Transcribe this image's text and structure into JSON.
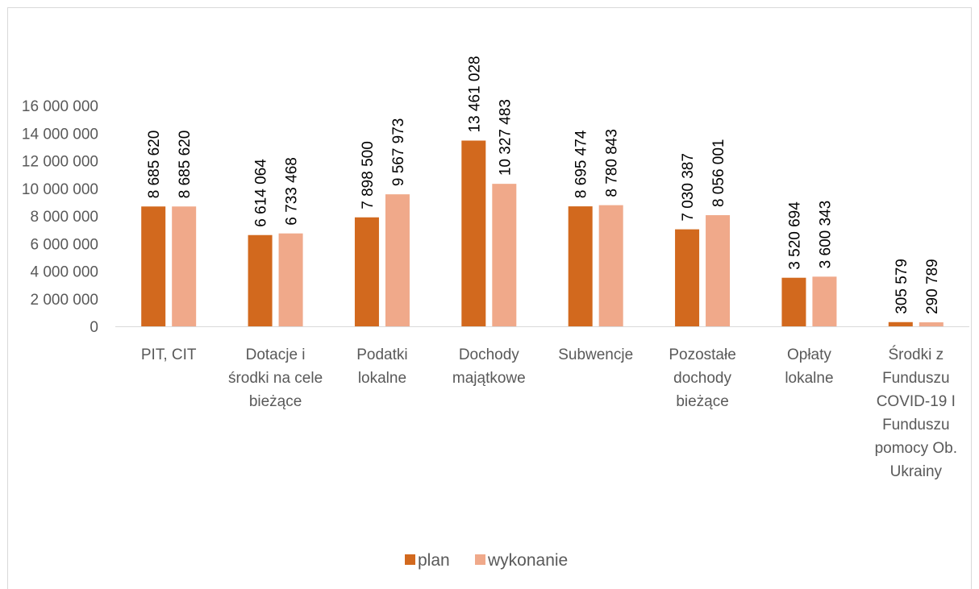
{
  "chart_data": {
    "type": "bar",
    "categories": [
      [
        "PIT, CIT"
      ],
      [
        "Dotacje i",
        "środki na cele",
        "bieżące"
      ],
      [
        "Podatki",
        "lokalne"
      ],
      [
        "Dochody",
        "majątkowe"
      ],
      [
        "Subwencje"
      ],
      [
        "Pozostałe",
        "dochody",
        "bieżące"
      ],
      [
        "Opłaty",
        "lokalne"
      ],
      [
        "Środki z",
        "Funduszu",
        "COVID-19 I",
        "Funduszu",
        "pomocy Ob.",
        "Ukrainy"
      ]
    ],
    "series": [
      {
        "name": "plan",
        "color": "#d2691e",
        "values": [
          8685620,
          6614064,
          7898500,
          13461028,
          8695474,
          7030387,
          3520694,
          305579
        ],
        "labels": [
          "8 685 620",
          "6 614 064",
          "7 898 500",
          "13 461 028",
          "8 695 474",
          "7 030 387",
          "3 520 694",
          "305 579"
        ]
      },
      {
        "name": "wykonanie",
        "color": "#f0a98a",
        "values": [
          8685620,
          6733468,
          9567973,
          10327483,
          8780843,
          8056001,
          3600343,
          290789
        ],
        "labels": [
          "8 685 620",
          "6 733 468",
          "9 567 973",
          "10 327 483",
          "8 780 843",
          "8 056 001",
          "3 600 343",
          "290 789"
        ]
      }
    ],
    "yticks": [
      0,
      2000000,
      4000000,
      6000000,
      8000000,
      10000000,
      12000000,
      14000000,
      16000000
    ],
    "ytick_labels": [
      "0",
      "2 000 000",
      "4 000 000",
      "6 000 000",
      "8 000 000",
      "10 000 000",
      "12 000 000",
      "14 000 000",
      "16 000 000"
    ],
    "ylim": [
      0,
      16000000
    ],
    "grid": false,
    "legend_position": "bottom",
    "title": "",
    "xlabel": "",
    "ylabel": ""
  }
}
